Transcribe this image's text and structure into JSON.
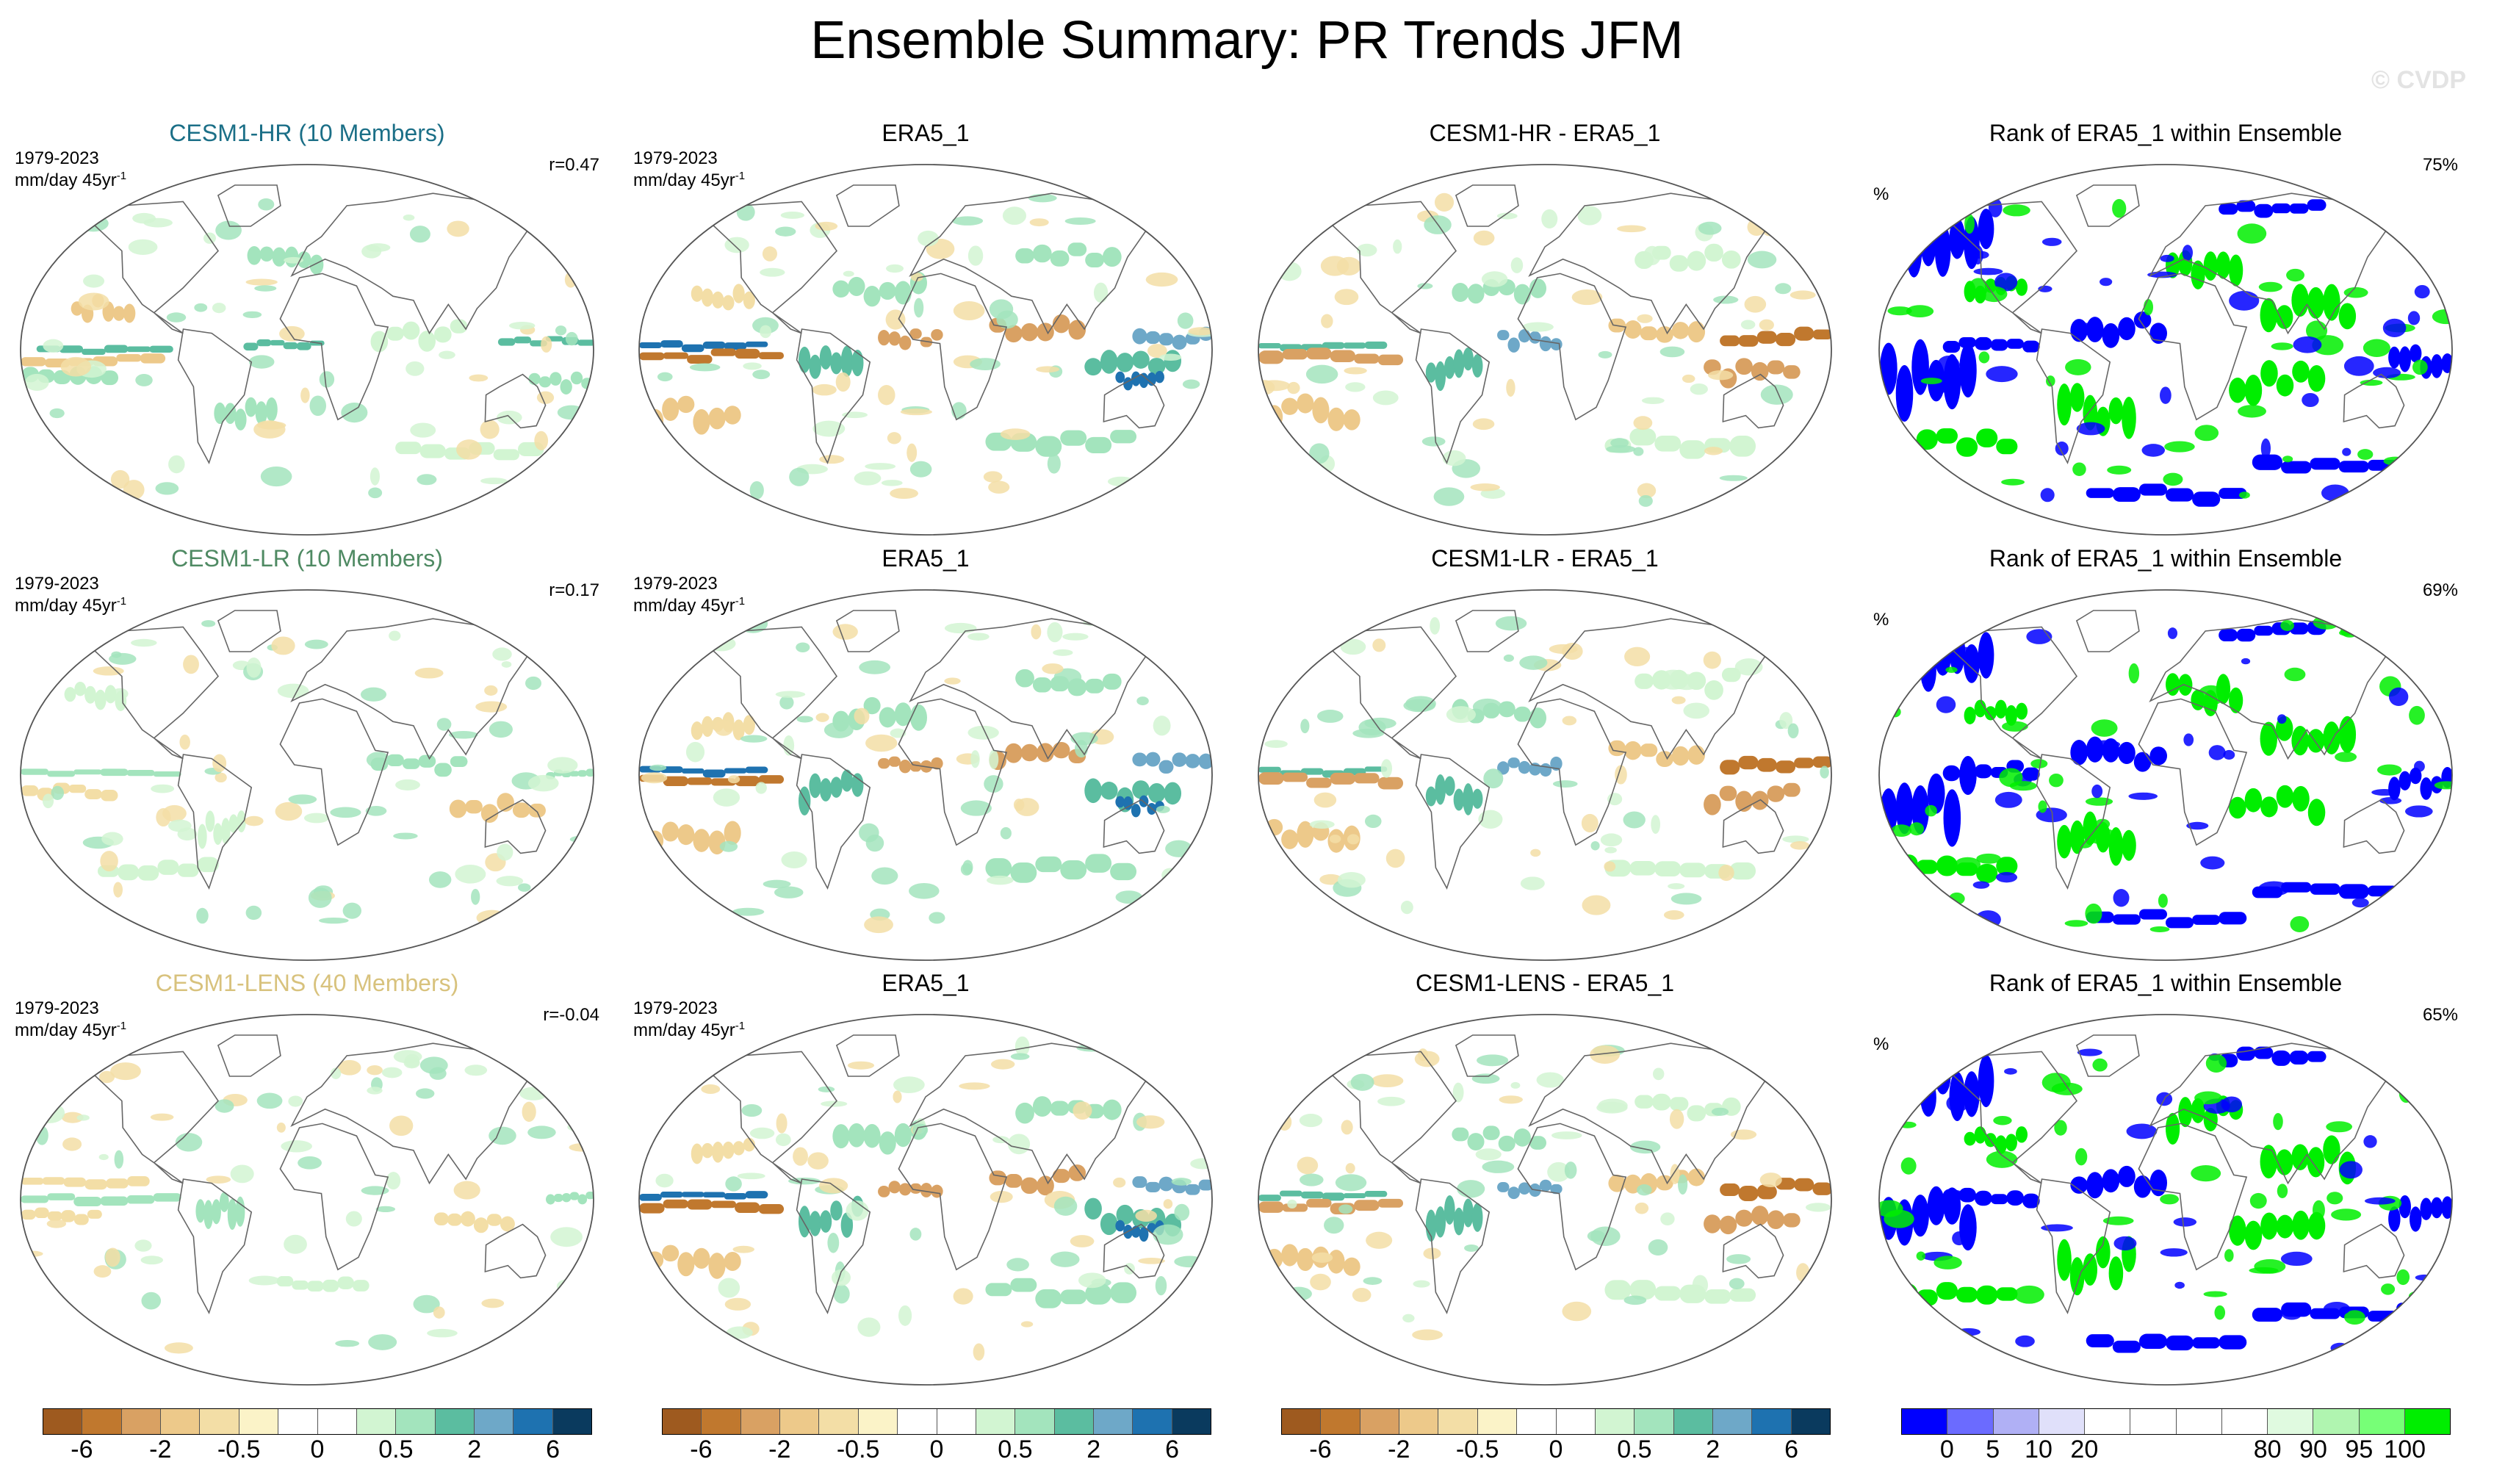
{
  "title": "Ensemble Summary: PR Trends JFM",
  "watermark": "© CVDP",
  "rows": [
    {
      "model": {
        "title": "CESM1-HR (10 Members)",
        "title_color": "#1b6f87",
        "period": "1979-2023",
        "units": "mm/day 45yr",
        "units_exp": "-1",
        "corr": "r=0.47"
      },
      "obs": {
        "title": "ERA5_1",
        "period": "1979-2023",
        "units": "mm/day 45yr",
        "units_exp": "-1"
      },
      "diff": {
        "title": "CESM1-HR - ERA5_1"
      },
      "rank": {
        "title": "Rank of ERA5_1 within Ensemble",
        "pct": "75%",
        "pct_symbol": "%"
      }
    },
    {
      "model": {
        "title": "CESM1-LR (10 Members)",
        "title_color": "#4f8a63",
        "period": "1979-2023",
        "units": "mm/day 45yr",
        "units_exp": "-1",
        "corr": "r=0.17"
      },
      "obs": {
        "title": "ERA5_1",
        "period": "1979-2023",
        "units": "mm/day 45yr",
        "units_exp": "-1"
      },
      "diff": {
        "title": "CESM1-LR - ERA5_1"
      },
      "rank": {
        "title": "Rank of ERA5_1 within Ensemble",
        "pct": "69%",
        "pct_symbol": "%"
      }
    },
    {
      "model": {
        "title": "CESM1-LENS (40 Members)",
        "title_color": "#d8c27d",
        "period": "1979-2023",
        "units": "mm/day 45yr",
        "units_exp": "-1",
        "corr": "r=-0.04"
      },
      "obs": {
        "title": "ERA5_1",
        "period": "1979-2023",
        "units": "mm/day 45yr",
        "units_exp": "-1"
      },
      "diff": {
        "title": "CESM1-LENS - ERA5_1"
      },
      "rank": {
        "title": "Rank of ERA5_1 within Ensemble",
        "pct": "65%",
        "pct_symbol": "%"
      }
    }
  ],
  "colorbars": {
    "trend": {
      "colors": [
        "#9e5a1f",
        "#c0782e",
        "#d9a163",
        "#edc98a",
        "#f3dea6",
        "#fbf3c8",
        "#ffffff",
        "#ffffff",
        "#d2f5d2",
        "#a3e4bd",
        "#5bbda0",
        "#6ea8c8",
        "#1e72b0",
        "#0a3a5e"
      ],
      "labels": [
        "-6",
        "-2",
        "-0.5",
        "0",
        "0.5",
        "2",
        "6"
      ],
      "label_positions": [
        1,
        3,
        5,
        7,
        9,
        11,
        13
      ]
    },
    "rank": {
      "colors": [
        "#0000ff",
        "#6b6bff",
        "#b0b0f5",
        "#e0e0fa",
        "#ffffff",
        "#ffffff",
        "#ffffff",
        "#ffffff",
        "#e0fae0",
        "#b0f5b0",
        "#77ff77",
        "#00ee00"
      ],
      "labels": [
        "0",
        "5",
        "10",
        "20",
        "80",
        "90",
        "95",
        "100"
      ],
      "label_positions": [
        1,
        2,
        3,
        4,
        8,
        9,
        10,
        11
      ]
    }
  },
  "map_patterns": {
    "hr_model": [
      {
        "lat": 0,
        "lon0": -170,
        "lon1": -85,
        "h": 3,
        "c": "#5bbda0"
      },
      {
        "lat": -5,
        "lon0": -180,
        "lon1": -90,
        "h": 4,
        "c": "#edc98a"
      },
      {
        "lat": 4,
        "lon0": 120,
        "lon1": 180,
        "h": 3,
        "c": "#5bbda0"
      },
      {
        "lat": 3,
        "lon0": -40,
        "lon1": 10,
        "h": 3,
        "c": "#5bbda0"
      },
      {
        "lat": -12,
        "lon0": -180,
        "lon1": -120,
        "h": 7,
        "c": "#a3e4bd"
      },
      {
        "lat": -15,
        "lon0": 140,
        "lon1": 180,
        "h": 6,
        "c": "#a3e4bd"
      },
      {
        "lat": 8,
        "lon0": 40,
        "lon1": 100,
        "h": 8,
        "c": "#d2f5d2"
      },
      {
        "lat": 20,
        "lon0": -150,
        "lon1": -110,
        "h": 8,
        "c": "#edc98a"
      },
      {
        "lat": -30,
        "lon0": -60,
        "lon1": -20,
        "h": 10,
        "c": "#a3e4bd"
      },
      {
        "lat": 45,
        "lon0": -40,
        "lon1": 10,
        "h": 8,
        "c": "#a3e4bd"
      },
      {
        "lat": -50,
        "lon0": 60,
        "lon1": 160,
        "h": 6,
        "c": "#d2f5d2"
      }
    ],
    "lr_model": [
      {
        "lat": 1,
        "lon0": 150,
        "lon1": 180,
        "h": 3,
        "c": "#a3e4bd"
      },
      {
        "lat": 1,
        "lon0": -180,
        "lon1": -80,
        "h": 3,
        "c": "#a3e4bd"
      },
      {
        "lat": -8,
        "lon0": -180,
        "lon1": -120,
        "h": 5,
        "c": "#f3dea6"
      },
      {
        "lat": -15,
        "lon0": 90,
        "lon1": 150,
        "h": 8,
        "c": "#edc98a"
      },
      {
        "lat": 5,
        "lon0": 40,
        "lon1": 100,
        "h": 6,
        "c": "#a3e4bd"
      },
      {
        "lat": -25,
        "lon0": -70,
        "lon1": -40,
        "h": 10,
        "c": "#d2f5d2"
      },
      {
        "lat": 40,
        "lon0": -160,
        "lon1": -120,
        "h": 8,
        "c": "#d2f5d2"
      },
      {
        "lat": -45,
        "lon0": -140,
        "lon1": -60,
        "h": 6,
        "c": "#d2f5d2"
      }
    ],
    "lens_model": [
      {
        "lat": 1,
        "lon0": 150,
        "lon1": 180,
        "h": 4,
        "c": "#a3e4bd"
      },
      {
        "lat": 1,
        "lon0": -180,
        "lon1": -80,
        "h": 4,
        "c": "#a3e4bd"
      },
      {
        "lat": 8,
        "lon0": -180,
        "lon1": -100,
        "h": 4,
        "c": "#f3dea6"
      },
      {
        "lat": -8,
        "lon0": -180,
        "lon1": -130,
        "h": 5,
        "c": "#f3dea6"
      },
      {
        "lat": -10,
        "lon0": 80,
        "lon1": 130,
        "h": 6,
        "c": "#f3dea6"
      },
      {
        "lat": -5,
        "lon0": -70,
        "lon1": -40,
        "h": 12,
        "c": "#a3e4bd"
      },
      {
        "lat": -40,
        "lon0": -20,
        "lon1": 40,
        "h": 5,
        "c": "#d2f5d2"
      }
    ],
    "obs": [
      {
        "lat": 2,
        "lon0": -180,
        "lon1": -100,
        "h": 3,
        "c": "#1e72b0"
      },
      {
        "lat": -3,
        "lon0": -180,
        "lon1": -90,
        "h": 4,
        "c": "#c0782e"
      },
      {
        "lat": 6,
        "lon0": 130,
        "lon1": 180,
        "h": 6,
        "c": "#6ea8c8"
      },
      {
        "lat": -8,
        "lon0": 100,
        "lon1": 160,
        "h": 10,
        "c": "#5bbda0"
      },
      {
        "lat": -15,
        "lon0": 120,
        "lon1": 150,
        "h": 6,
        "c": "#1e72b0"
      },
      {
        "lat": 10,
        "lon0": 40,
        "lon1": 100,
        "h": 8,
        "c": "#d9a163"
      },
      {
        "lat": -8,
        "lon0": -80,
        "lon1": -40,
        "h": 12,
        "c": "#5bbda0"
      },
      {
        "lat": 5,
        "lon0": -30,
        "lon1": 10,
        "h": 6,
        "c": "#d9a163"
      },
      {
        "lat": 30,
        "lon0": -60,
        "lon1": 0,
        "h": 10,
        "c": "#a3e4bd"
      },
      {
        "lat": -30,
        "lon0": -180,
        "lon1": -120,
        "h": 10,
        "c": "#edc98a"
      },
      {
        "lat": 45,
        "lon0": 60,
        "lon1": 130,
        "h": 8,
        "c": "#a3e4bd"
      },
      {
        "lat": -45,
        "lon0": 40,
        "lon1": 140,
        "h": 8,
        "c": "#a3e4bd"
      },
      {
        "lat": 25,
        "lon0": -150,
        "lon1": -110,
        "h": 8,
        "c": "#f3dea6"
      }
    ],
    "diff": [
      {
        "lat": 2,
        "lon0": -180,
        "lon1": -100,
        "h": 3,
        "c": "#5bbda0"
      },
      {
        "lat": -3,
        "lon0": -180,
        "lon1": -90,
        "h": 5,
        "c": "#d9a163"
      },
      {
        "lat": 6,
        "lon0": 110,
        "lon1": 180,
        "h": 6,
        "c": "#c0782e"
      },
      {
        "lat": -10,
        "lon0": 100,
        "lon1": 160,
        "h": 8,
        "c": "#d9a163"
      },
      {
        "lat": -8,
        "lon0": -75,
        "lon1": -40,
        "h": 12,
        "c": "#5bbda0"
      },
      {
        "lat": 5,
        "lon0": -30,
        "lon1": 10,
        "h": 6,
        "c": "#6ea8c8"
      },
      {
        "lat": 10,
        "lon0": 40,
        "lon1": 100,
        "h": 8,
        "c": "#edc98a"
      },
      {
        "lat": 30,
        "lon0": -60,
        "lon1": 0,
        "h": 8,
        "c": "#a3e4bd"
      },
      {
        "lat": -30,
        "lon0": -180,
        "lon1": -120,
        "h": 10,
        "c": "#edc98a"
      },
      {
        "lat": 45,
        "lon0": 60,
        "lon1": 130,
        "h": 8,
        "c": "#d2f5d2"
      },
      {
        "lat": -45,
        "lon0": 40,
        "lon1": 140,
        "h": 8,
        "c": "#d2f5d2"
      }
    ],
    "rank": [
      {
        "lat": 55,
        "lon0": -180,
        "lon1": -120,
        "h": 20,
        "c": "#0000ff"
      },
      {
        "lat": -10,
        "lon0": -180,
        "lon1": -120,
        "h": 22,
        "c": "#0000ff"
      },
      {
        "lat": 2,
        "lon0": -140,
        "lon1": -80,
        "h": 6,
        "c": "#0000ff"
      },
      {
        "lat": -15,
        "lon0": 40,
        "lon1": 100,
        "h": 12,
        "c": "#00ee00"
      },
      {
        "lat": 20,
        "lon0": 60,
        "lon1": 120,
        "h": 14,
        "c": "#00ee00"
      },
      {
        "lat": -30,
        "lon0": -70,
        "lon1": -20,
        "h": 16,
        "c": "#00ee00"
      },
      {
        "lat": 10,
        "lon0": -60,
        "lon1": 0,
        "h": 10,
        "c": "#0000ff"
      },
      {
        "lat": -5,
        "lon0": 140,
        "lon1": 180,
        "h": 10,
        "c": "#0000ff"
      },
      {
        "lat": -45,
        "lon0": -180,
        "lon1": -100,
        "h": 8,
        "c": "#00ee00"
      },
      {
        "lat": 40,
        "lon0": 0,
        "lon1": 50,
        "h": 12,
        "c": "#00ee00"
      },
      {
        "lat": -55,
        "lon0": 60,
        "lon1": 180,
        "h": 6,
        "c": "#0000ff"
      },
      {
        "lat": 70,
        "lon0": 40,
        "lon1": 120,
        "h": 6,
        "c": "#0000ff"
      },
      {
        "lat": -70,
        "lon0": -60,
        "lon1": 60,
        "h": 6,
        "c": "#0000ff"
      },
      {
        "lat": 30,
        "lon0": -130,
        "lon1": -90,
        "h": 8,
        "c": "#00ee00"
      }
    ]
  }
}
